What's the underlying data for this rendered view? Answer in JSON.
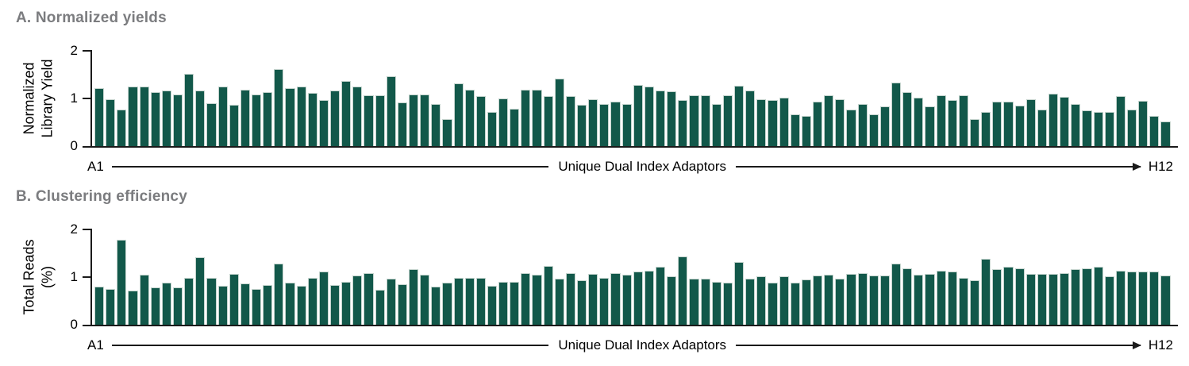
{
  "colors": {
    "bar_fill": "#12584a",
    "bar_stroke": "#c5d4ce",
    "axis": "#1a1a1a",
    "panel_title_gray": "#7b7c7f",
    "background": "#ffffff"
  },
  "chart_data": [
    {
      "type": "bar",
      "panel_label": "A",
      "title": "A. Normalized yields",
      "ylabel": "Normalized Library Yield",
      "ylabel_lines": [
        "Normalized",
        "Library Yield"
      ],
      "ytick_labels": [
        "2",
        "1",
        "0"
      ],
      "ylim": [
        0,
        2
      ],
      "yticks": [
        0,
        1,
        2
      ],
      "xlabel": "Unique Dual Index Adaptors",
      "x_start_label": "A1",
      "x_end_label": "H12",
      "n_bars": 96,
      "bar_color": "#12584a",
      "values": [
        1.22,
        0.98,
        0.76,
        1.25,
        1.25,
        1.14,
        1.17,
        1.08,
        1.51,
        1.17,
        0.9,
        1.25,
        0.86,
        1.19,
        1.08,
        1.14,
        1.62,
        1.22,
        1.25,
        1.12,
        0.96,
        1.16,
        1.37,
        1.25,
        1.07,
        1.07,
        1.46,
        0.91,
        1.08,
        1.08,
        0.88,
        0.56,
        1.31,
        1.19,
        1.05,
        0.72,
        1.0,
        0.78,
        1.18,
        1.18,
        1.05,
        1.41,
        1.05,
        0.86,
        0.98,
        0.89,
        0.93,
        0.89,
        1.28,
        1.25,
        1.17,
        1.15,
        0.96,
        1.07,
        1.07,
        0.89,
        1.07,
        1.27,
        1.16,
        0.99,
        0.97,
        1.02,
        0.67,
        0.63,
        0.94,
        1.07,
        0.98,
        0.77,
        0.89,
        0.67,
        0.84,
        1.33,
        1.14,
        1.02,
        0.83,
        1.07,
        0.97,
        1.07,
        0.56,
        0.72,
        0.94,
        0.93,
        0.85,
        0.98,
        0.77,
        1.1,
        1.03,
        0.88,
        0.75,
        0.72,
        0.72,
        1.05,
        0.77,
        0.95,
        0.63,
        0.52
      ]
    },
    {
      "type": "bar",
      "panel_label": "B",
      "title": "B. Clustering efficiency",
      "ylabel": "Total Reads (%)",
      "ylabel_lines": [
        "Total Reads",
        "(%)"
      ],
      "ytick_labels": [
        "2",
        "1",
        "0"
      ],
      "ylim": [
        0,
        2
      ],
      "yticks": [
        0,
        1,
        2
      ],
      "xlabel": "Unique Dual Index Adaptors",
      "x_start_label": "A1",
      "x_end_label": "H12",
      "n_bars": 96,
      "bar_color": "#12584a",
      "values": [
        0.8,
        0.75,
        1.78,
        0.72,
        1.05,
        0.78,
        0.89,
        0.78,
        0.98,
        1.42,
        0.99,
        0.82,
        1.06,
        0.86,
        0.75,
        0.84,
        1.28,
        0.89,
        0.82,
        0.98,
        1.11,
        0.83,
        0.9,
        1.04,
        1.08,
        0.74,
        0.97,
        0.85,
        1.16,
        1.05,
        0.8,
        0.88,
        0.99,
        0.98,
        0.99,
        0.82,
        0.9,
        0.9,
        1.08,
        1.05,
        1.24,
        0.97,
        1.08,
        0.94,
        1.07,
        0.99,
        1.08,
        1.05,
        1.11,
        1.13,
        1.21,
        1.02,
        1.44,
        0.97,
        0.97,
        0.9,
        0.88,
        1.31,
        0.96,
        1.02,
        0.89,
        1.02,
        0.88,
        0.95,
        1.03,
        1.05,
        0.97,
        1.06,
        1.08,
        1.04,
        1.04,
        1.28,
        1.19,
        1.05,
        1.07,
        1.13,
        1.11,
        0.99,
        0.93,
        1.38,
        1.16,
        1.21,
        1.18,
        1.07,
        1.07,
        1.07,
        1.08,
        1.16,
        1.18,
        1.21,
        1.01,
        1.14,
        1.11,
        1.11,
        1.11,
        1.03
      ]
    }
  ]
}
